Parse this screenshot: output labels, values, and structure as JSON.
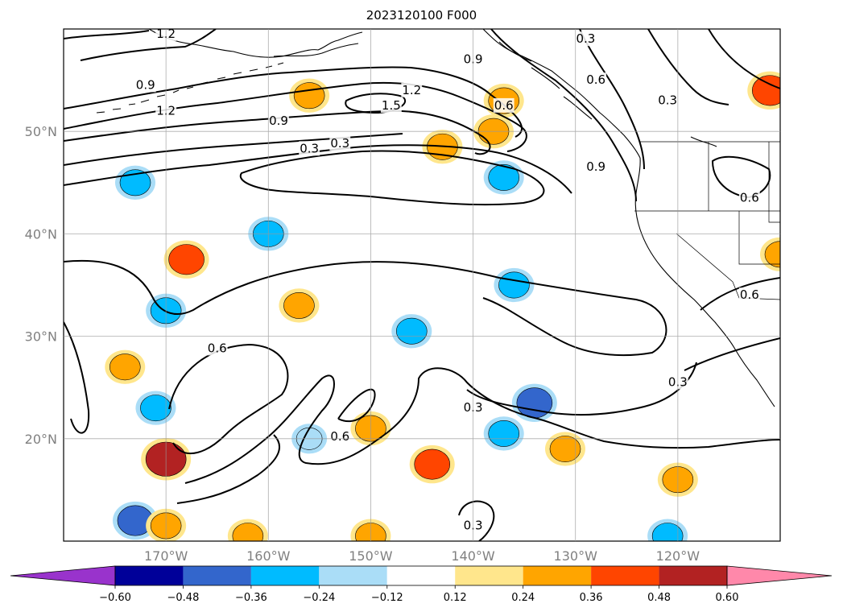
{
  "title": "2023120100 F000",
  "map": {
    "lat_ticks": [
      {
        "label": "50°N",
        "value": 50
      },
      {
        "label": "40°N",
        "value": 40
      },
      {
        "label": "30°N",
        "value": 30
      },
      {
        "label": "20°N",
        "value": 20
      }
    ],
    "lon_ticks": [
      {
        "label": "170°W",
        "value": -170
      },
      {
        "label": "160°W",
        "value": -160
      },
      {
        "label": "150°W",
        "value": -150
      },
      {
        "label": "140°W",
        "value": -140
      },
      {
        "label": "130°W",
        "value": -130
      },
      {
        "label": "120°W",
        "value": -120
      }
    ],
    "contour_labels": [
      {
        "text": "1.2",
        "lon": -170,
        "lat": 59.5
      },
      {
        "text": "0.9",
        "lon": -172,
        "lat": 54.5
      },
      {
        "text": "1.2",
        "lon": -170,
        "lat": 52
      },
      {
        "text": "0.9",
        "lon": -159,
        "lat": 51
      },
      {
        "text": "0.3",
        "lon": -153,
        "lat": 48.8
      },
      {
        "text": "0.3",
        "lon": -156,
        "lat": 48.3
      },
      {
        "text": "1.5",
        "lon": -148,
        "lat": 52.5
      },
      {
        "text": "1.2",
        "lon": -146,
        "lat": 54
      },
      {
        "text": "0.9",
        "lon": -140,
        "lat": 57
      },
      {
        "text": "0.3",
        "lon": -129,
        "lat": 59
      },
      {
        "text": "0.6",
        "lon": -128,
        "lat": 55
      },
      {
        "text": "0.6",
        "lon": -137,
        "lat": 52.5
      },
      {
        "text": "0.3",
        "lon": -121,
        "lat": 53
      },
      {
        "text": "0.9",
        "lon": -128,
        "lat": 46.5
      },
      {
        "text": "0.6",
        "lon": -113,
        "lat": 43.5
      },
      {
        "text": "0.6",
        "lon": -113,
        "lat": 34
      },
      {
        "text": "0.3",
        "lon": -120,
        "lat": 25.5
      },
      {
        "text": "0.6",
        "lon": -165,
        "lat": 28.8
      },
      {
        "text": "0.3",
        "lon": -140,
        "lat": 23
      },
      {
        "text": "0.6",
        "lon": -153,
        "lat": 20.2
      },
      {
        "text": "0.3",
        "lon": -140,
        "lat": 11.5
      }
    ],
    "features": {
      "contours": "black-contour-lines",
      "coastlines": "coastline",
      "borders": "state-borders",
      "grid": true
    }
  },
  "colorbar": {
    "tick_labels": [
      "−0.60",
      "−0.48",
      "−0.36",
      "−0.24",
      "−0.12",
      "0.12",
      "0.24",
      "0.36",
      "0.48",
      "0.60"
    ],
    "colors": [
      "#9933cc",
      "#000099",
      "#3366cc",
      "#00bbff",
      "#aaddf7",
      "#ffffff",
      "#ffe68c",
      "#ffa500",
      "#ff4500",
      "#b22222",
      "#ff88aa"
    ],
    "extend": "both"
  },
  "anomaly_blobs": [
    {
      "lon": -173,
      "lat": 45,
      "value": -0.3
    },
    {
      "lon": -160,
      "lat": 40,
      "value": -0.3
    },
    {
      "lon": -168,
      "lat": 37.5,
      "value": 0.4
    },
    {
      "lon": -170,
      "lat": 32.5,
      "value": -0.3
    },
    {
      "lon": -157,
      "lat": 33,
      "value": 0.3
    },
    {
      "lon": -174,
      "lat": 27,
      "value": 0.3
    },
    {
      "lon": -171,
      "lat": 23,
      "value": -0.3
    },
    {
      "lon": -170,
      "lat": 18,
      "value": 0.5
    },
    {
      "lon": -173,
      "lat": 12,
      "value": -0.4
    },
    {
      "lon": -170,
      "lat": 11.5,
      "value": 0.3
    },
    {
      "lon": -162,
      "lat": 10.5,
      "value": 0.3
    },
    {
      "lon": -156,
      "lat": 20,
      "value": -0.2
    },
    {
      "lon": -150,
      "lat": 21,
      "value": 0.3
    },
    {
      "lon": -150,
      "lat": 10.5,
      "value": 0.3
    },
    {
      "lon": -146,
      "lat": 30.5,
      "value": -0.3
    },
    {
      "lon": -144,
      "lat": 17.5,
      "value": 0.4
    },
    {
      "lon": -137,
      "lat": 20.5,
      "value": -0.3
    },
    {
      "lon": -134,
      "lat": 23.5,
      "value": -0.4
    },
    {
      "lon": -131,
      "lat": 19,
      "value": 0.3
    },
    {
      "lon": -120,
      "lat": 16,
      "value": 0.3
    },
    {
      "lon": -121,
      "lat": 10.5,
      "value": -0.3
    },
    {
      "lon": -137,
      "lat": 45.5,
      "value": -0.3
    },
    {
      "lon": -136,
      "lat": 35,
      "value": -0.3
    },
    {
      "lon": -138,
      "lat": 50,
      "value": 0.3
    },
    {
      "lon": -143,
      "lat": 48.5,
      "value": 0.3
    },
    {
      "lon": -137,
      "lat": 53,
      "value": 0.3
    },
    {
      "lon": -156,
      "lat": 53.5,
      "value": 0.3
    },
    {
      "lon": -111,
      "lat": 54,
      "value": 0.4
    },
    {
      "lon": -110,
      "lat": 38,
      "value": 0.3
    }
  ]
}
